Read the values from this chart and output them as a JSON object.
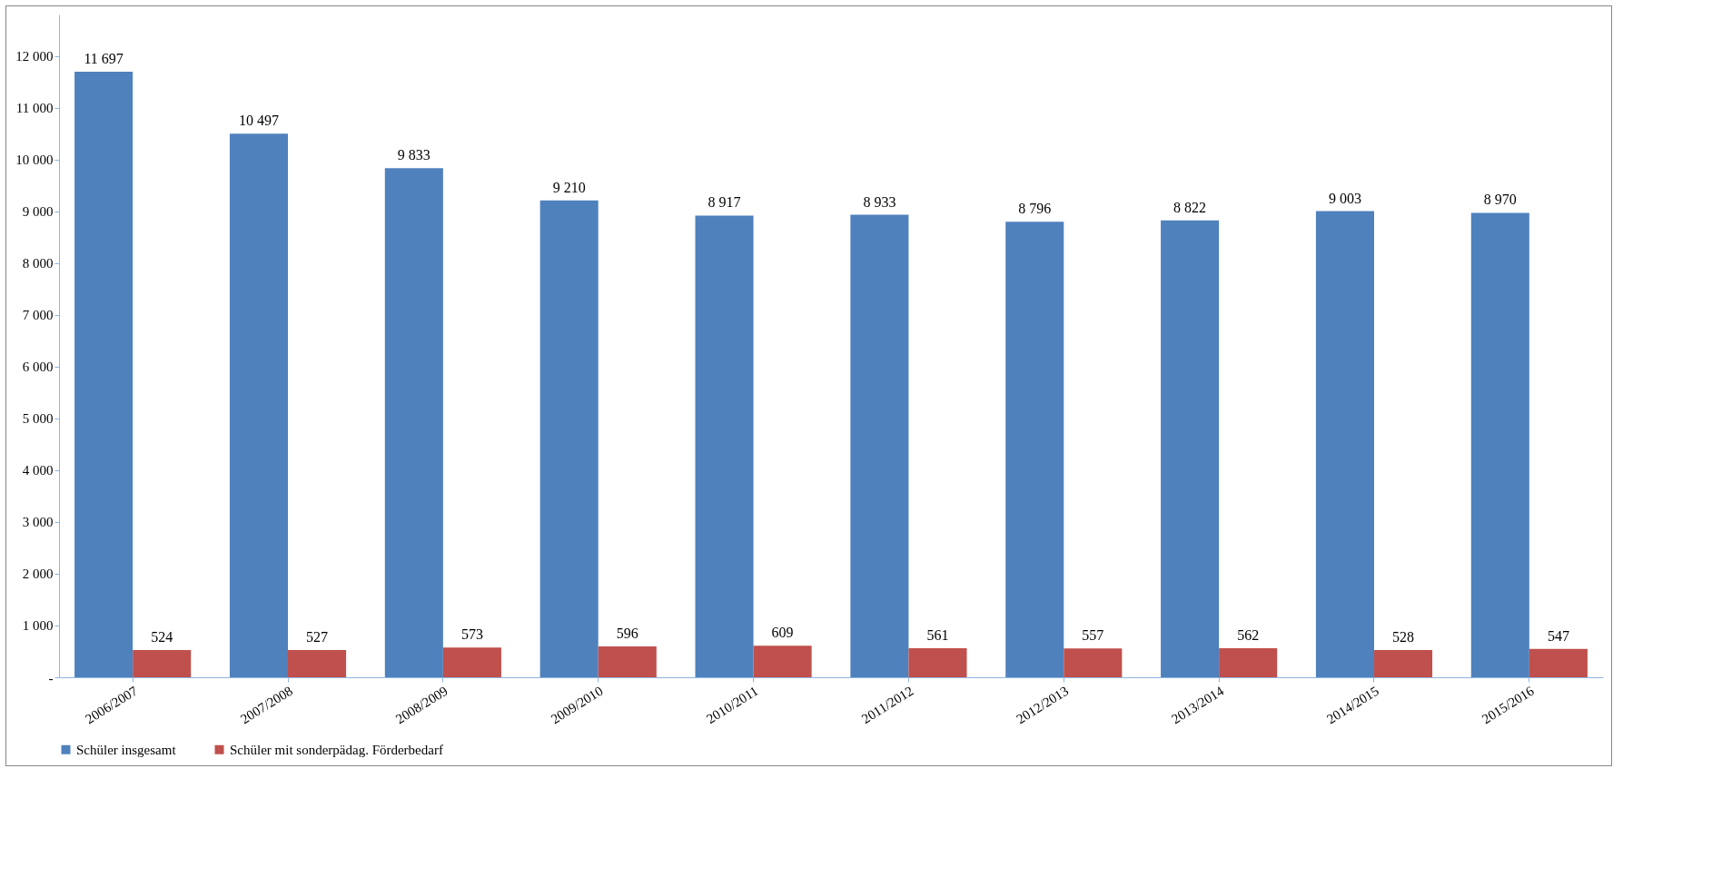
{
  "chart_data": {
    "type": "bar",
    "categories": [
      "2006/2007",
      "2007/2008",
      "2008/2009",
      "2009/2010",
      "2010/2011",
      "2011/2012",
      "2012/2013",
      "2013/2014",
      "2014/2015",
      "2015/2016"
    ],
    "series": [
      {
        "name": "Schüler insgesamt",
        "color": "#4f81bd",
        "values": [
          11697,
          10497,
          9833,
          9210,
          8917,
          8933,
          8796,
          8822,
          9003,
          8970
        ],
        "value_labels": [
          "11 697",
          "10 497",
          "9 833",
          "9 210",
          "8 917",
          "8 933",
          "8 796",
          "8 822",
          "9 003",
          "8 970"
        ]
      },
      {
        "name": "Schüler mit sonderpädag. Förderbedarf",
        "color": "#c0504d",
        "values": [
          524,
          527,
          573,
          596,
          609,
          561,
          557,
          562,
          528,
          547
        ],
        "value_labels": [
          "524",
          "527",
          "573",
          "596",
          "609",
          "561",
          "557",
          "562",
          "528",
          "547"
        ]
      }
    ],
    "ylim": [
      0,
      12800
    ],
    "yticks": [
      {
        "value": 0,
        "label": "-"
      },
      {
        "value": 1000,
        "label": "1 000"
      },
      {
        "value": 2000,
        "label": "2 000"
      },
      {
        "value": 3000,
        "label": "3 000"
      },
      {
        "value": 4000,
        "label": "4 000"
      },
      {
        "value": 5000,
        "label": "5 000"
      },
      {
        "value": 6000,
        "label": "6 000"
      },
      {
        "value": 7000,
        "label": "7 000"
      },
      {
        "value": 8000,
        "label": "8 000"
      },
      {
        "value": 9000,
        "label": "9 000"
      },
      {
        "value": 10000,
        "label": "10 000"
      },
      {
        "value": 11000,
        "label": "11 000"
      },
      {
        "value": 12000,
        "label": "12 000"
      }
    ],
    "grid": false,
    "legend": "bottom"
  }
}
